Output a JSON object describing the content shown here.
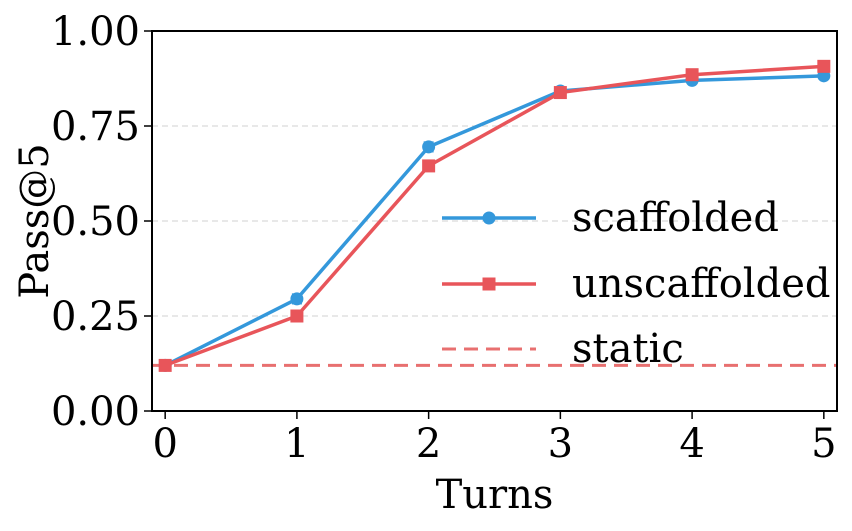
{
  "chart_data": {
    "type": "line",
    "xlabel": "Turns",
    "ylabel": "Pass@5",
    "x": [
      0,
      1,
      2,
      3,
      4,
      5
    ],
    "xticks": [
      "0",
      "1",
      "2",
      "3",
      "4",
      "5"
    ],
    "yticks": [
      "0.00",
      "0.25",
      "0.50",
      "0.75",
      "1.00"
    ],
    "xlim": [
      -0.1,
      5.1
    ],
    "ylim": [
      0.0,
      1.0
    ],
    "grid": "horizontal dashed",
    "legend_position": "center-right",
    "series": [
      {
        "name": "scaffolded",
        "marker": "circle",
        "color": "#3498db",
        "values": [
          0.12,
          0.295,
          0.695,
          0.842,
          0.87,
          0.882
        ],
        "error": [
          0.005,
          0.012,
          0.012,
          0.008,
          0.007,
          0.006
        ]
      },
      {
        "name": "unscaffolded",
        "marker": "square",
        "color": "#e8555a",
        "values": [
          0.12,
          0.25,
          0.645,
          0.838,
          0.885,
          0.907
        ],
        "error": [
          0.004,
          0.008,
          0.01,
          0.008,
          0.006,
          0.005
        ]
      },
      {
        "name": "static",
        "style": "dashed",
        "color": "#e87070",
        "value": 0.12
      }
    ]
  }
}
